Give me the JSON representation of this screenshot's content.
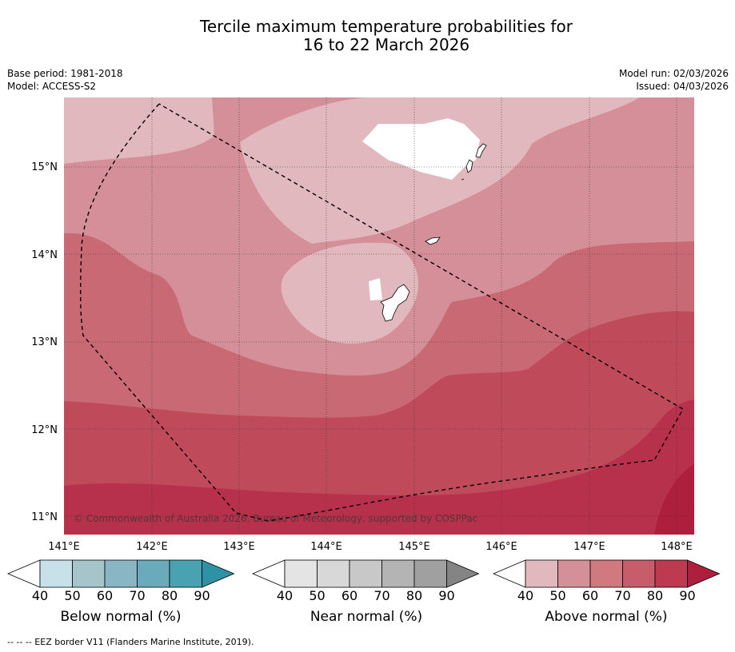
{
  "title_line1": "Tercile maximum temperature probabilities for",
  "title_line2": "16 to 22 March 2026",
  "base_period": "Base period: 1981-2018",
  "model": "Model: ACCESS-S2",
  "model_run": "Model run: 02/03/2026",
  "issued": "Issued: 04/03/2026",
  "copyright": "© Commonwealth of Australia 2026, Bureau of Meteorology, supported by COSPPac",
  "lat_labels": [
    "15°N",
    "14°N",
    "13°N",
    "12°N",
    "11°N"
  ],
  "lon_labels": [
    "141°E",
    "142°E",
    "143°E",
    "144°E",
    "145°E",
    "146°E",
    "147°E",
    "148°E"
  ],
  "colorbars": [
    {
      "label": "Below normal (%)",
      "ticks": [
        "40",
        "50",
        "60",
        "70",
        "80",
        "90"
      ],
      "colors": [
        "#ffffff",
        "#c8e1e8",
        "#a6c5ca",
        "#89b6c3",
        "#6aabbb",
        "#48a2b2",
        "#2f91a4"
      ]
    },
    {
      "label": "Near normal (%)",
      "ticks": [
        "40",
        "50",
        "60",
        "70",
        "80",
        "90"
      ],
      "colors": [
        "#ffffff",
        "#e4e4e4",
        "#d8d8d8",
        "#c8c8c8",
        "#b4b4b4",
        "#a0a0a0",
        "#848484"
      ]
    },
    {
      "label": "Above normal (%)",
      "ticks": [
        "40",
        "50",
        "60",
        "70",
        "80",
        "90"
      ],
      "colors": [
        "#ffffff",
        "#e0b8bd",
        "#d58f98",
        "#d0797f",
        "#c75c6a",
        "#bd3a51",
        "#ad1f3d"
      ]
    }
  ],
  "map_colors": {
    "c40": "#e0b8bd",
    "c50": "#d58f98",
    "c60": "#c86973",
    "c70": "#bf4b5a",
    "c80": "#b8314c",
    "c90": "#ad1f3d"
  },
  "footer": "-- -- -- EEZ border V11 (Flanders Marine Institute, 2019)."
}
